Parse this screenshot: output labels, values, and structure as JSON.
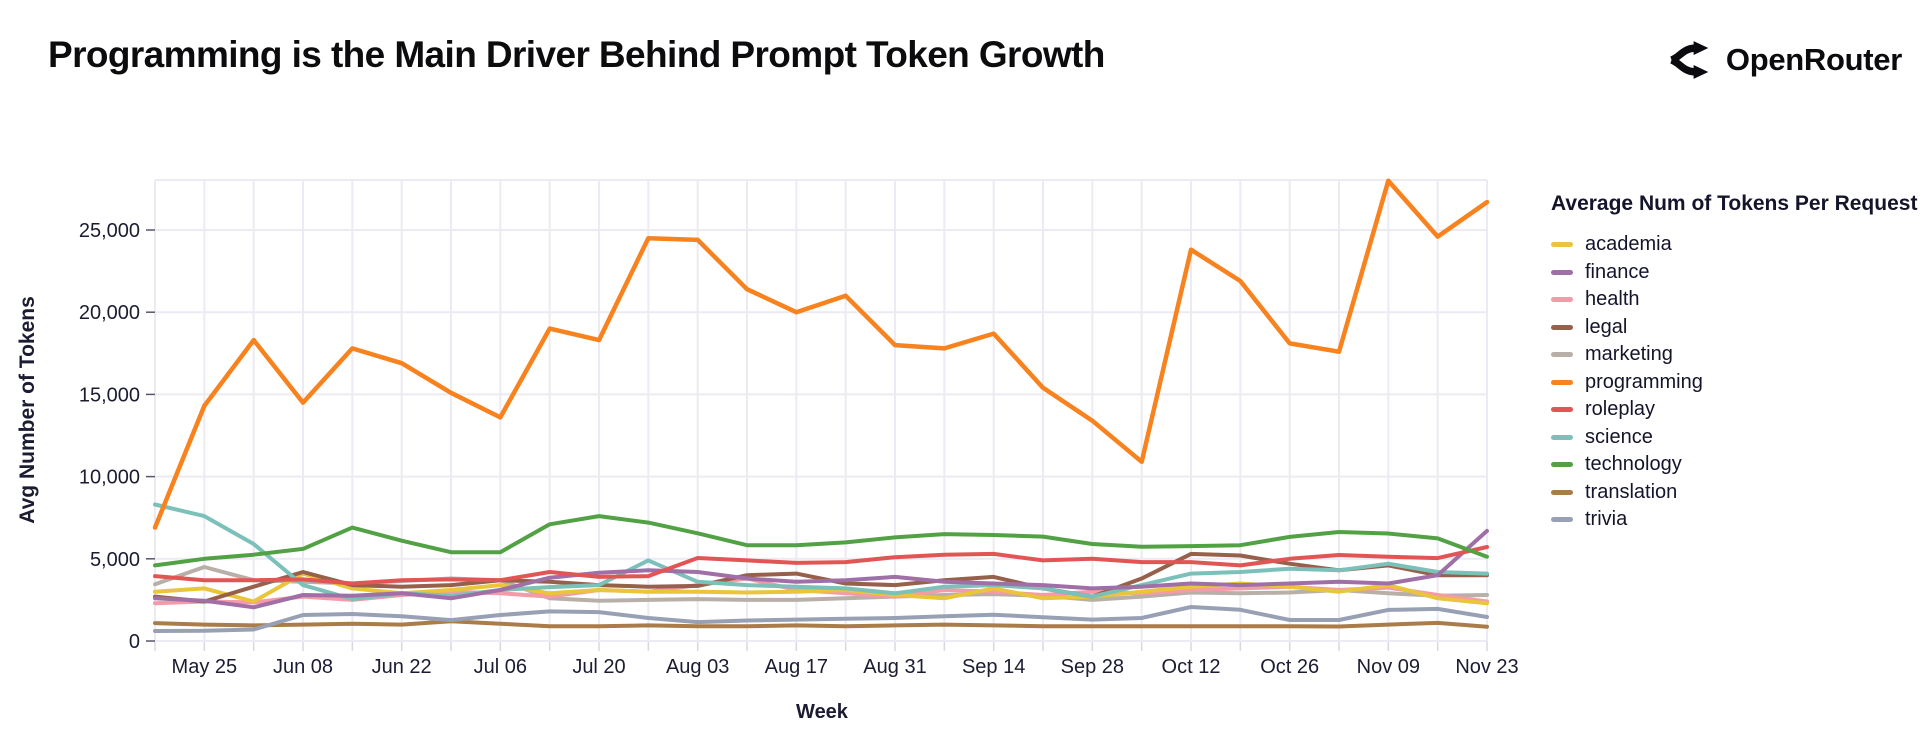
{
  "header": {
    "brand": "OpenRouter"
  },
  "chart_data": {
    "type": "line",
    "title": "Programming is the Main Driver Behind Prompt Token Growth",
    "xlabel": "Week",
    "ylabel": "Avg Number of Tokens",
    "legend_title": "Average Num of Tokens Per Request",
    "legend_position": "right",
    "grid": true,
    "ylim": [
      0,
      28500
    ],
    "ytick_values": [
      0,
      5000,
      10000,
      15000,
      20000,
      25000
    ],
    "ytick_labels": [
      "0",
      "5,000",
      "10,000",
      "15,000",
      "20,000",
      "25,000"
    ],
    "categories": [
      "May 18",
      "May 25",
      "Jun 01",
      "Jun 08",
      "Jun 15",
      "Jun 22",
      "Jun 29",
      "Jul 06",
      "Jul 13",
      "Jul 20",
      "Jul 27",
      "Aug 03",
      "Aug 10",
      "Aug 17",
      "Aug 24",
      "Aug 31",
      "Sep 07",
      "Sep 14",
      "Sep 21",
      "Sep 28",
      "Oct 05",
      "Oct 12",
      "Oct 19",
      "Oct 26",
      "Nov 02",
      "Nov 09",
      "Nov 16",
      "Nov 23"
    ],
    "xtick_labels": [
      "May 25",
      "Jun 08",
      "Jun 22",
      "Jul 06",
      "Jul 20",
      "Aug 03",
      "Aug 17",
      "Aug 31",
      "Sep 14",
      "Sep 28",
      "Oct 12",
      "Oct 26",
      "Nov 09",
      "Nov 23"
    ],
    "series": [
      {
        "name": "academia",
        "color": "#e8c53a",
        "values": [
          3000,
          3200,
          2400,
          4100,
          3200,
          2900,
          3100,
          3400,
          2900,
          3100,
          3000,
          3000,
          2950,
          3000,
          3100,
          2800,
          2600,
          3200,
          2600,
          2700,
          3000,
          3300,
          3500,
          3300,
          3000,
          3400,
          2600,
          2300
        ]
      },
      {
        "name": "finance",
        "color": "#a06fa8",
        "values": [
          2600,
          2450,
          2050,
          2800,
          2750,
          2900,
          2600,
          3100,
          3850,
          4150,
          4300,
          4200,
          3800,
          3600,
          3700,
          3900,
          3600,
          3500,
          3400,
          3200,
          3300,
          3500,
          3400,
          3500,
          3600,
          3500,
          4000,
          6700
        ]
      },
      {
        "name": "health",
        "color": "#f59aa8",
        "values": [
          2300,
          2400,
          2350,
          2700,
          2500,
          2800,
          3000,
          2900,
          2700,
          3100,
          3000,
          3400,
          3800,
          3100,
          2900,
          2700,
          3100,
          3000,
          2800,
          3000,
          2900,
          3100,
          3200,
          3300,
          3100,
          3250,
          2800,
          2400
        ]
      },
      {
        "name": "legal",
        "color": "#96604a",
        "values": [
          2700,
          2400,
          3300,
          4200,
          3400,
          3300,
          3400,
          3700,
          3600,
          3400,
          3300,
          3350,
          4000,
          4100,
          3500,
          3400,
          3700,
          3900,
          3200,
          2700,
          3800,
          5300,
          5200,
          4700,
          4300,
          4600,
          4000,
          4000
        ]
      },
      {
        "name": "marketing",
        "color": "#b8afa8",
        "values": [
          3450,
          4500,
          3700,
          3600,
          3500,
          3650,
          3800,
          3700,
          2600,
          2450,
          2500,
          2550,
          2500,
          2500,
          2600,
          2700,
          2800,
          2850,
          2750,
          2500,
          2700,
          2950,
          2900,
          2950,
          3100,
          2900,
          2750,
          2800
        ]
      },
      {
        "name": "programming",
        "color": "#f7821e",
        "values": [
          6900,
          14300,
          18300,
          14500,
          17800,
          16900,
          15100,
          13600,
          19000,
          18300,
          24500,
          24400,
          21400,
          20000,
          21000,
          18000,
          17800,
          18700,
          15400,
          13400,
          10900,
          23800,
          21900,
          18100,
          17600,
          28000,
          24600,
          26700
        ]
      },
      {
        "name": "roleplay",
        "color": "#e25555",
        "values": [
          3950,
          3700,
          3700,
          3750,
          3500,
          3700,
          3750,
          3700,
          4200,
          3900,
          3950,
          5050,
          4900,
          4750,
          4800,
          5100,
          5250,
          5300,
          4900,
          5000,
          4800,
          4800,
          4600,
          5000,
          5230,
          5120,
          5040,
          5720
        ]
      },
      {
        "name": "science",
        "color": "#7cc0ba",
        "values": [
          8300,
          7600,
          5900,
          3400,
          2550,
          2900,
          2750,
          3100,
          3280,
          3400,
          4900,
          3600,
          3400,
          3300,
          3200,
          2900,
          3300,
          3400,
          3200,
          2700,
          3400,
          4100,
          4200,
          4400,
          4300,
          4700,
          4200,
          4100
        ]
      },
      {
        "name": "technology",
        "color": "#52a245",
        "values": [
          4600,
          5000,
          5250,
          5600,
          6900,
          6100,
          5400,
          5400,
          7100,
          7600,
          7200,
          6550,
          5830,
          5830,
          6000,
          6300,
          6500,
          6450,
          6350,
          5900,
          5730,
          5770,
          5830,
          6330,
          6630,
          6540,
          6240,
          5130
        ]
      },
      {
        "name": "translation",
        "color": "#aa7c4a",
        "values": [
          1090,
          1000,
          950,
          1000,
          1050,
          1000,
          1200,
          1050,
          900,
          900,
          950,
          900,
          900,
          950,
          900,
          950,
          1000,
          950,
          900,
          900,
          900,
          900,
          900,
          900,
          880,
          1000,
          1100,
          870
        ]
      },
      {
        "name": "trivia",
        "color": "#98a0b4",
        "values": [
          610,
          620,
          700,
          1580,
          1640,
          1500,
          1270,
          1580,
          1800,
          1760,
          1400,
          1150,
          1250,
          1300,
          1350,
          1400,
          1500,
          1600,
          1450,
          1300,
          1400,
          2070,
          1900,
          1280,
          1280,
          1890,
          1950,
          1460
        ]
      }
    ],
    "colors": {
      "grid": "#eceaf2",
      "axis_text": "#1b1b32",
      "title_text": "#0c0c0e"
    }
  }
}
